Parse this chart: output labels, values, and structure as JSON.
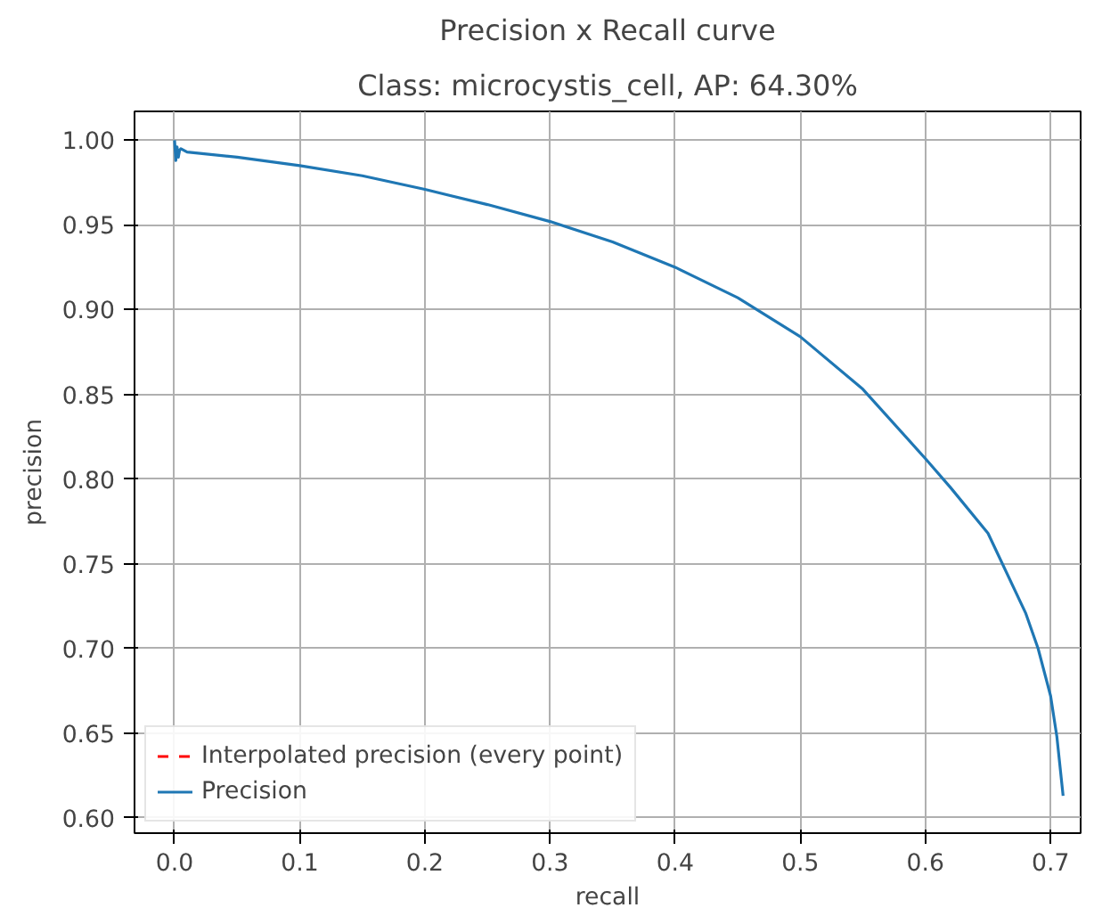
{
  "chart_data": {
    "type": "line",
    "title": "Precision x Recall curve",
    "subtitle": "Class: microcystis_cell, AP: 64.30%",
    "xlabel": "recall",
    "ylabel": "precision",
    "xlim": [
      -0.032,
      0.724
    ],
    "ylim": [
      0.591,
      1.017
    ],
    "xticks": [
      {
        "value": 0,
        "label": "0.0"
      },
      {
        "value": 0.1,
        "label": "0.1"
      },
      {
        "value": 0.2,
        "label": "0.2"
      },
      {
        "value": 0.3,
        "label": "0.3"
      },
      {
        "value": 0.4,
        "label": "0.4"
      },
      {
        "value": 0.5,
        "label": "0.5"
      },
      {
        "value": 0.6,
        "label": "0.6"
      },
      {
        "value": 0.7,
        "label": "0.7"
      }
    ],
    "yticks": [
      {
        "value": 0.6,
        "label": "0.60"
      },
      {
        "value": 0.65,
        "label": "0.65"
      },
      {
        "value": 0.7,
        "label": "0.70"
      },
      {
        "value": 0.75,
        "label": "0.75"
      },
      {
        "value": 0.8,
        "label": "0.80"
      },
      {
        "value": 0.85,
        "label": "0.85"
      },
      {
        "value": 0.9,
        "label": "0.90"
      },
      {
        "value": 0.95,
        "label": "0.95"
      },
      {
        "value": 1.0,
        "label": "1.00"
      }
    ],
    "grid": true,
    "legend": "bottom left",
    "series": [
      {
        "name": "Interpolated precision (every point)",
        "color": "#ff0000",
        "line_style": "dashed"
      },
      {
        "name": "Precision",
        "color": "#1f77b4",
        "line_style": "solid",
        "x": [
          0,
          0.001,
          0.002,
          0.003,
          0.004,
          0.005,
          0.01,
          0.05,
          0.1,
          0.15,
          0.2,
          0.25,
          0.3,
          0.35,
          0.4,
          0.45,
          0.5,
          0.55,
          0.6,
          0.62,
          0.65,
          0.68,
          0.69,
          0.7,
          0.705,
          0.71
        ],
        "values": [
          1.0,
          0.988,
          0.996,
          0.99,
          0.994,
          0.995,
          0.993,
          0.99,
          0.985,
          0.979,
          0.971,
          0.962,
          0.952,
          0.94,
          0.925,
          0.907,
          0.884,
          0.853,
          0.812,
          0.795,
          0.768,
          0.721,
          0.7,
          0.672,
          0.648,
          0.613
        ]
      }
    ]
  }
}
